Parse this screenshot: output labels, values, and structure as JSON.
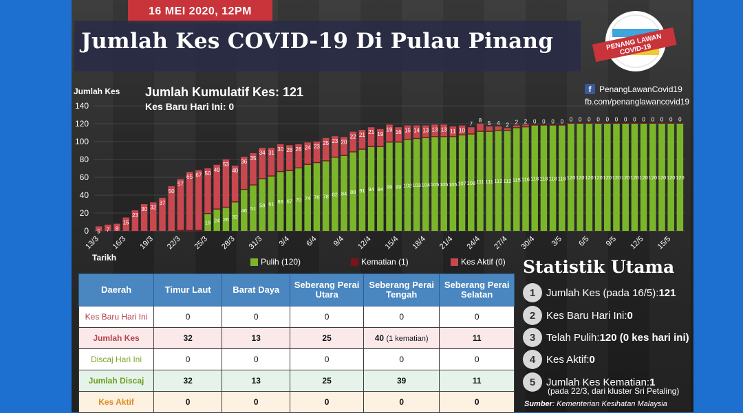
{
  "date_banner": "16 MEI 2020, 12PM",
  "title": "Jumlah Kes COVID-19 Di Pulau Pinang",
  "logo": {
    "line1": "PENANG LAWAN",
    "line2": "COVID-19"
  },
  "social": {
    "fb_handle": "PenangLawanCovid19",
    "fb_url": "fb.com/penanglawancovid19"
  },
  "summary": {
    "cumulative": "Jumlah Kumulatif Kes: 121",
    "new_today": "Kes Baru Hari Ini: 0"
  },
  "colors": {
    "pulih": "#7bb62a",
    "kematian": "#7a1418",
    "aktif": "#c9474f"
  },
  "chart_data": {
    "type": "bar",
    "stacked": true,
    "ylabel": "Jumlah Kes",
    "xlabel": "Tarikh",
    "ylim": [
      0,
      140
    ],
    "yticks": [
      0,
      20,
      40,
      60,
      80,
      100,
      120,
      140
    ],
    "x_start_day": "13/3",
    "xtick_labels": [
      "13/3",
      "16/3",
      "19/3",
      "22/3",
      "25/3",
      "28/3",
      "31/3",
      "3/4",
      "6/4",
      "9/4",
      "12/4",
      "15/4",
      "18/4",
      "21/4",
      "24/4",
      "27/4",
      "30/4",
      "3/5",
      "6/5",
      "9/5",
      "12/5",
      "15/5"
    ],
    "pulih": [
      0,
      0,
      0,
      0,
      0,
      0,
      0,
      0,
      0,
      0,
      0,
      0,
      19,
      24,
      26,
      32,
      46,
      51,
      58,
      61,
      66,
      67,
      70,
      74,
      76,
      78,
      82,
      84,
      88,
      91,
      94,
      94,
      99,
      99,
      102,
      103,
      104,
      105,
      105,
      105,
      107,
      108,
      111,
      111,
      112,
      112,
      115,
      116,
      118,
      118,
      118,
      118,
      120,
      120,
      120,
      120,
      120,
      120,
      120,
      120,
      120,
      120,
      120,
      120,
      120
    ],
    "kematian": [
      0,
      0,
      0,
      0,
      0,
      0,
      0,
      0,
      0,
      1,
      1,
      1,
      1,
      1,
      1,
      1,
      1,
      1,
      1,
      1,
      1,
      1,
      1,
      1,
      1,
      1,
      1,
      1,
      1,
      1,
      1,
      1,
      1,
      1,
      1,
      1,
      1,
      1,
      1,
      1,
      1,
      1,
      1,
      1,
      1,
      1,
      1,
      1,
      1,
      1,
      1,
      1,
      1,
      1,
      1,
      1,
      1,
      1,
      1,
      1,
      1,
      1,
      1,
      1,
      1
    ],
    "aktif": [
      5,
      7,
      8,
      15,
      23,
      30,
      32,
      37,
      50,
      57,
      65,
      67,
      50,
      49,
      53,
      40,
      36,
      35,
      34,
      31,
      30,
      28,
      26,
      24,
      23,
      25,
      23,
      20,
      22,
      21,
      21,
      19,
      19,
      16,
      15,
      14,
      13,
      13,
      13,
      11,
      10,
      7,
      8,
      5,
      4,
      2,
      2,
      2,
      0,
      0,
      0,
      0,
      0,
      0,
      0,
      0,
      0,
      0,
      0,
      0,
      0,
      0,
      0,
      0,
      0
    ],
    "legend": [
      {
        "key": "pulih",
        "label": "Pulih (120)"
      },
      {
        "key": "kematian",
        "label": "Kematian (1)"
      },
      {
        "key": "aktif",
        "label": "Kes Aktif (0)"
      }
    ]
  },
  "table": {
    "headers": [
      "Daerah",
      "Timur Laut",
      "Barat Daya",
      "Seberang Perai Utara",
      "Seberang Perai Tengah",
      "Seberang Perai Selatan"
    ],
    "rows": [
      {
        "label": "Kes Baru Hari Ini",
        "values": [
          "0",
          "0",
          "0",
          "0",
          "0"
        ]
      },
      {
        "label": "Jumlah Kes",
        "values": [
          "32",
          "13",
          "25",
          "40",
          "11"
        ],
        "note_col": 3,
        "note": "(1 kematian)"
      },
      {
        "label": "Discaj Hari Ini",
        "values": [
          "0",
          "0",
          "0",
          "0",
          "0"
        ]
      },
      {
        "label": "Jumlah Discaj",
        "values": [
          "32",
          "13",
          "25",
          "39",
          "11"
        ]
      },
      {
        "label": "Kes Aktif",
        "values": [
          "0",
          "0",
          "0",
          "0",
          "0"
        ]
      }
    ]
  },
  "stats": {
    "title": "Statistik Utama",
    "items": [
      {
        "n": "1",
        "label": "Jumlah Kes (pada 16/5): ",
        "value": "121"
      },
      {
        "n": "2",
        "label": "Kes Baru Hari Ini: ",
        "value": "0"
      },
      {
        "n": "3",
        "label": "Telah Pulih: ",
        "value": "120 (0 kes hari ini)"
      },
      {
        "n": "4",
        "label": "Kes Aktif: ",
        "value": "0"
      },
      {
        "n": "5",
        "label": "Jumlah Kes Kematian: ",
        "value": "1"
      }
    ],
    "item5_sub": "(pada 22/3, dari kluster Sri Petaling)",
    "source_label": "Sumber",
    "source_text": ": Kementerian Kesihatan Malaysia"
  }
}
